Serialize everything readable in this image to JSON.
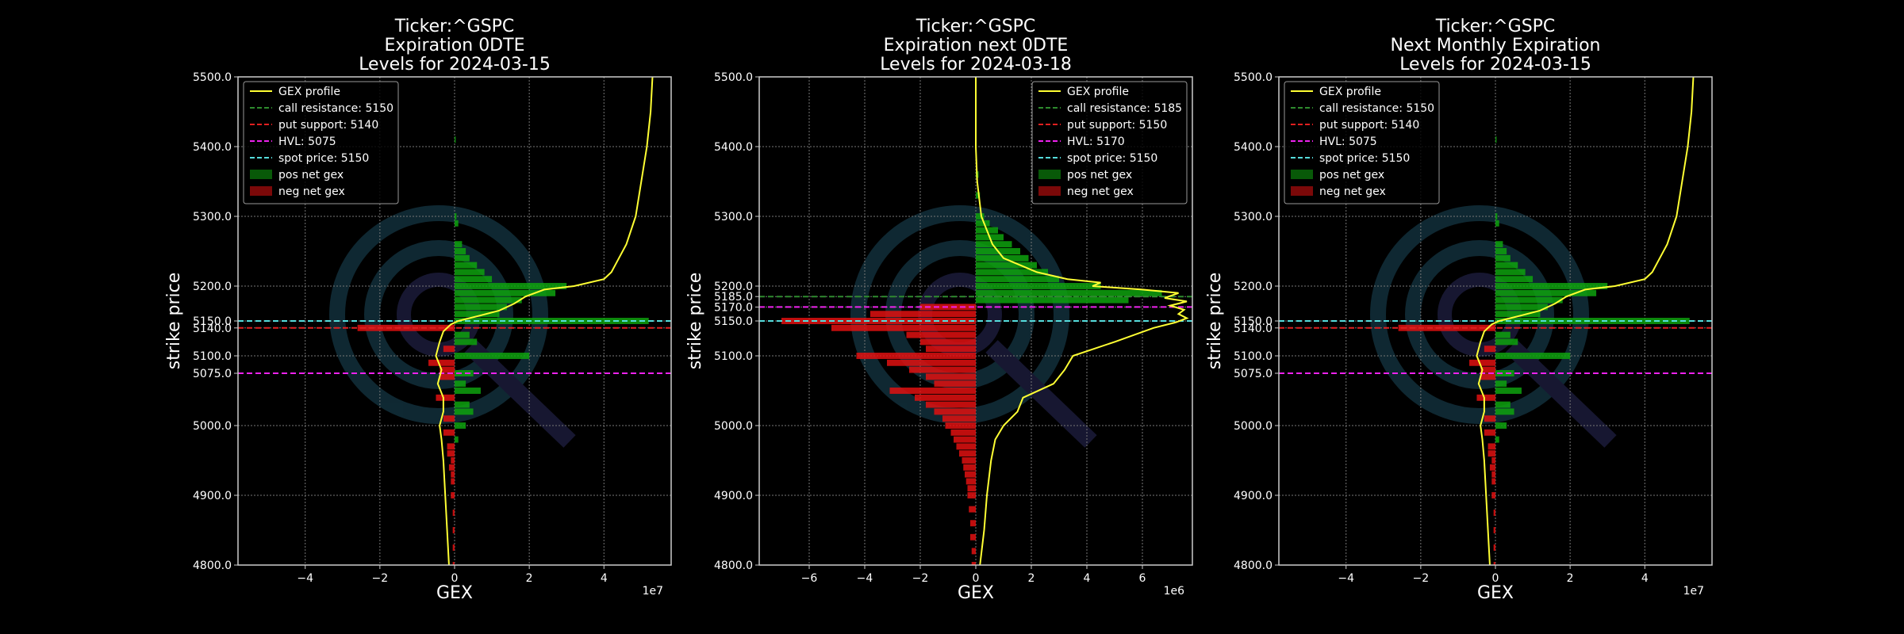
{
  "colors": {
    "background": "#000000",
    "gex_profile": "#ffff33",
    "call_resistance": "#2e8b2e",
    "put_support": "#e02020",
    "hvl": "#ee22ee",
    "spot_price": "#55dddd",
    "pos_net_gex": "#0ea20e",
    "neg_net_gex": "#e01010",
    "grid": "#777777",
    "text": "#ffffff",
    "watermark": "#1c4a5c"
  },
  "chart_data": [
    {
      "type": "bar",
      "title": [
        "Ticker:^GSPC",
        "Expiration 0DTE",
        "Levels for 2024-03-15"
      ],
      "xlabel": "GEX",
      "ylabel": "strike price",
      "x_exponent_label": "1e7",
      "x_scale": 10000000,
      "xlim": [
        -5.8,
        5.8
      ],
      "ylim": [
        4800,
        5500
      ],
      "x_ticks": [
        -4,
        -2,
        0,
        2,
        4
      ],
      "x_tick_labels": [
        "−4",
        "−2",
        "0",
        "2",
        "4"
      ],
      "y_ticks": [
        4800,
        4900,
        5000,
        5100,
        5140,
        5150,
        5200,
        5300,
        5400,
        5500
      ],
      "y_tick_labels": [
        "4800.0",
        "4900.0",
        "5000.0",
        "5100.0",
        "5140.0",
        "5150.0",
        "5200.0",
        "5300.0",
        "5400.0",
        "5500.0"
      ],
      "extra_y_ticks": [
        5075
      ],
      "extra_y_tick_labels": [
        "5075.0"
      ],
      "grid": true,
      "legend_position": "top-left",
      "legend": [
        "GEX profile",
        "call resistance: 5150",
        "put support: 5140",
        "HVL: 5075",
        "spot price: 5150",
        "pos net gex",
        "neg net gex"
      ],
      "levels": {
        "call_resistance": 5150,
        "put_support": 5140,
        "hvl": 5075,
        "spot_price": 5150
      },
      "bars": [
        {
          "strike": 5410,
          "gex": 0.03
        },
        {
          "strike": 5300,
          "gex": 0.05
        },
        {
          "strike": 5290,
          "gex": 0.1
        },
        {
          "strike": 5260,
          "gex": 0.2
        },
        {
          "strike": 5250,
          "gex": 0.3
        },
        {
          "strike": 5240,
          "gex": 0.4
        },
        {
          "strike": 5230,
          "gex": 0.6
        },
        {
          "strike": 5220,
          "gex": 0.8
        },
        {
          "strike": 5210,
          "gex": 1.0
        },
        {
          "strike": 5200,
          "gex": 3.0
        },
        {
          "strike": 5190,
          "gex": 2.7
        },
        {
          "strike": 5180,
          "gex": 1.8
        },
        {
          "strike": 5170,
          "gex": 1.4
        },
        {
          "strike": 5160,
          "gex": 1.2
        },
        {
          "strike": 5150,
          "gex": 5.2
        },
        {
          "strike": 5140,
          "gex": -2.6
        },
        {
          "strike": 5130,
          "gex": 0.4
        },
        {
          "strike": 5120,
          "gex": 0.6
        },
        {
          "strike": 5110,
          "gex": -0.3
        },
        {
          "strike": 5100,
          "gex": 2.0
        },
        {
          "strike": 5090,
          "gex": -0.7
        },
        {
          "strike": 5080,
          "gex": -0.4
        },
        {
          "strike": 5075,
          "gex": 0.5
        },
        {
          "strike": 5070,
          "gex": -0.4
        },
        {
          "strike": 5060,
          "gex": 0.3
        },
        {
          "strike": 5050,
          "gex": 0.7
        },
        {
          "strike": 5040,
          "gex": -0.5
        },
        {
          "strike": 5030,
          "gex": 0.4
        },
        {
          "strike": 5020,
          "gex": 0.5
        },
        {
          "strike": 5010,
          "gex": -0.3
        },
        {
          "strike": 5000,
          "gex": 0.3
        },
        {
          "strike": 4990,
          "gex": -0.3
        },
        {
          "strike": 4980,
          "gex": 0.1
        },
        {
          "strike": 4970,
          "gex": -0.2
        },
        {
          "strike": 4960,
          "gex": -0.2
        },
        {
          "strike": 4950,
          "gex": -0.1
        },
        {
          "strike": 4940,
          "gex": -0.15
        },
        {
          "strike": 4930,
          "gex": -0.1
        },
        {
          "strike": 4920,
          "gex": -0.1
        },
        {
          "strike": 4900,
          "gex": -0.1
        },
        {
          "strike": 4875,
          "gex": -0.05
        },
        {
          "strike": 4850,
          "gex": -0.05
        },
        {
          "strike": 4825,
          "gex": -0.05
        },
        {
          "strike": 4800,
          "gex": -0.05
        }
      ],
      "profile": [
        [
          5500,
          5.3
        ],
        [
          5450,
          5.25
        ],
        [
          5400,
          5.15
        ],
        [
          5350,
          5.0
        ],
        [
          5300,
          4.85
        ],
        [
          5260,
          4.6
        ],
        [
          5240,
          4.4
        ],
        [
          5220,
          4.2
        ],
        [
          5210,
          4.0
        ],
        [
          5200,
          3.2
        ],
        [
          5195,
          2.4
        ],
        [
          5185,
          1.9
        ],
        [
          5175,
          1.6
        ],
        [
          5165,
          1.2
        ],
        [
          5158,
          0.7
        ],
        [
          5150,
          0.1
        ],
        [
          5145,
          -0.1
        ],
        [
          5135,
          -0.3
        ],
        [
          5120,
          -0.4
        ],
        [
          5100,
          -0.5
        ],
        [
          5080,
          -0.35
        ],
        [
          5060,
          -0.45
        ],
        [
          5040,
          -0.3
        ],
        [
          5020,
          -0.3
        ],
        [
          5000,
          -0.4
        ],
        [
          4980,
          -0.35
        ],
        [
          4950,
          -0.3
        ],
        [
          4900,
          -0.25
        ],
        [
          4850,
          -0.2
        ],
        [
          4800,
          -0.15
        ]
      ]
    },
    {
      "type": "bar",
      "title": [
        "Ticker:^GSPC",
        "Expiration next 0DTE",
        "Levels for 2024-03-18"
      ],
      "xlabel": "GEX",
      "ylabel": "strike price",
      "x_exponent_label": "1e6",
      "x_scale": 1000000,
      "xlim": [
        -7.8,
        7.8
      ],
      "ylim": [
        4800,
        5500
      ],
      "x_ticks": [
        -6,
        -4,
        -2,
        0,
        2,
        4,
        6
      ],
      "x_tick_labels": [
        "−6",
        "−4",
        "−2",
        "0",
        "2",
        "4",
        "6"
      ],
      "y_ticks": [
        4800,
        4900,
        5000,
        5100,
        5150,
        5170,
        5185,
        5200,
        5300,
        5400,
        5500
      ],
      "y_tick_labels": [
        "4800.0",
        "4900.0",
        "5000.0",
        "5100.0",
        "5150.0",
        "5170.0",
        "5185.0",
        "5200.0",
        "5300.0",
        "5400.0",
        "5500.0"
      ],
      "extra_y_ticks": [],
      "extra_y_tick_labels": [],
      "grid": true,
      "legend_position": "top-right",
      "legend": [
        "GEX profile",
        "call resistance: 5185",
        "put support: 5150",
        "HVL: 5170",
        "spot price: 5150",
        "pos net gex",
        "neg net gex"
      ],
      "levels": {
        "call_resistance": 5185,
        "put_support": 5150,
        "hvl": 5170,
        "spot_price": 5150
      },
      "bars": [
        {
          "strike": 5360,
          "gex": 0.1
        },
        {
          "strike": 5330,
          "gex": 0.15
        },
        {
          "strike": 5300,
          "gex": 0.3
        },
        {
          "strike": 5290,
          "gex": 0.5
        },
        {
          "strike": 5280,
          "gex": 0.8
        },
        {
          "strike": 5270,
          "gex": 1.0
        },
        {
          "strike": 5260,
          "gex": 1.3
        },
        {
          "strike": 5250,
          "gex": 1.6
        },
        {
          "strike": 5240,
          "gex": 1.9
        },
        {
          "strike": 5230,
          "gex": 2.2
        },
        {
          "strike": 5220,
          "gex": 2.6
        },
        {
          "strike": 5210,
          "gex": 3.0
        },
        {
          "strike": 5200,
          "gex": 4.5
        },
        {
          "strike": 5190,
          "gex": 6.7
        },
        {
          "strike": 5180,
          "gex": 5.5
        },
        {
          "strike": 5170,
          "gex": -2.0
        },
        {
          "strike": 5160,
          "gex": -3.8
        },
        {
          "strike": 5150,
          "gex": -7.0
        },
        {
          "strike": 5140,
          "gex": -5.2
        },
        {
          "strike": 5130,
          "gex": -2.5
        },
        {
          "strike": 5120,
          "gex": -2.0
        },
        {
          "strike": 5110,
          "gex": -1.8
        },
        {
          "strike": 5100,
          "gex": -4.3
        },
        {
          "strike": 5090,
          "gex": -3.2
        },
        {
          "strike": 5080,
          "gex": -2.4
        },
        {
          "strike": 5070,
          "gex": -1.8
        },
        {
          "strike": 5060,
          "gex": -1.5
        },
        {
          "strike": 5050,
          "gex": -3.1
        },
        {
          "strike": 5040,
          "gex": -2.2
        },
        {
          "strike": 5030,
          "gex": -1.8
        },
        {
          "strike": 5020,
          "gex": -1.5
        },
        {
          "strike": 5010,
          "gex": -1.2
        },
        {
          "strike": 5000,
          "gex": -1.1
        },
        {
          "strike": 4990,
          "gex": -0.9
        },
        {
          "strike": 4980,
          "gex": -0.8
        },
        {
          "strike": 4970,
          "gex": -0.7
        },
        {
          "strike": 4960,
          "gex": -0.6
        },
        {
          "strike": 4950,
          "gex": -0.5
        },
        {
          "strike": 4940,
          "gex": -0.45
        },
        {
          "strike": 4930,
          "gex": -0.4
        },
        {
          "strike": 4920,
          "gex": -0.35
        },
        {
          "strike": 4910,
          "gex": -0.3
        },
        {
          "strike": 4900,
          "gex": -0.3
        },
        {
          "strike": 4880,
          "gex": -0.25
        },
        {
          "strike": 4860,
          "gex": -0.2
        },
        {
          "strike": 4840,
          "gex": -0.2
        },
        {
          "strike": 4820,
          "gex": -0.15
        },
        {
          "strike": 4800,
          "gex": -0.15
        }
      ],
      "profile": [
        [
          5500,
          0.0
        ],
        [
          5400,
          0.0
        ],
        [
          5350,
          0.05
        ],
        [
          5300,
          0.2
        ],
        [
          5260,
          0.6
        ],
        [
          5240,
          1.0
        ],
        [
          5220,
          2.2
        ],
        [
          5210,
          3.3
        ],
        [
          5205,
          4.5
        ],
        [
          5200,
          4.2
        ],
        [
          5195,
          6.0
        ],
        [
          5190,
          7.3
        ],
        [
          5183,
          6.8
        ],
        [
          5178,
          7.6
        ],
        [
          5172,
          7.0
        ],
        [
          5166,
          7.5
        ],
        [
          5160,
          7.3
        ],
        [
          5154,
          7.6
        ],
        [
          5148,
          7.2
        ],
        [
          5140,
          6.4
        ],
        [
          5120,
          5.0
        ],
        [
          5100,
          3.5
        ],
        [
          5080,
          3.2
        ],
        [
          5060,
          2.8
        ],
        [
          5040,
          1.7
        ],
        [
          5020,
          1.5
        ],
        [
          5000,
          1.0
        ],
        [
          4980,
          0.7
        ],
        [
          4950,
          0.55
        ],
        [
          4900,
          0.4
        ],
        [
          4850,
          0.3
        ],
        [
          4800,
          0.15
        ]
      ]
    },
    {
      "type": "bar",
      "title": [
        "Ticker:^GSPC",
        "Next Monthly Expiration",
        "Levels for 2024-03-15"
      ],
      "xlabel": "GEX",
      "ylabel": "strike price",
      "x_exponent_label": "1e7",
      "x_scale": 10000000,
      "xlim": [
        -5.8,
        5.8
      ],
      "ylim": [
        4800,
        5500
      ],
      "x_ticks": [
        -4,
        -2,
        0,
        2,
        4
      ],
      "x_tick_labels": [
        "−4",
        "−2",
        "0",
        "2",
        "4"
      ],
      "y_ticks": [
        4800,
        4900,
        5000,
        5100,
        5140,
        5150,
        5200,
        5300,
        5400,
        5500
      ],
      "y_tick_labels": [
        "4800.0",
        "4900.0",
        "5000.0",
        "5100.0",
        "5140.0",
        "5150.0",
        "5200.0",
        "5300.0",
        "5400.0",
        "5500.0"
      ],
      "extra_y_ticks": [
        5075
      ],
      "extra_y_tick_labels": [
        "5075.0"
      ],
      "grid": true,
      "legend_position": "top-left",
      "legend": [
        "GEX profile",
        "call resistance: 5150",
        "put support: 5140",
        "HVL: 5075",
        "spot price: 5150",
        "pos net gex",
        "neg net gex"
      ],
      "levels": {
        "call_resistance": 5150,
        "put_support": 5140,
        "hvl": 5075,
        "spot_price": 5150
      },
      "bars": [
        {
          "strike": 5410,
          "gex": 0.03
        },
        {
          "strike": 5300,
          "gex": 0.05
        },
        {
          "strike": 5290,
          "gex": 0.1
        },
        {
          "strike": 5260,
          "gex": 0.2
        },
        {
          "strike": 5250,
          "gex": 0.3
        },
        {
          "strike": 5240,
          "gex": 0.4
        },
        {
          "strike": 5230,
          "gex": 0.6
        },
        {
          "strike": 5220,
          "gex": 0.8
        },
        {
          "strike": 5210,
          "gex": 1.0
        },
        {
          "strike": 5200,
          "gex": 3.0
        },
        {
          "strike": 5190,
          "gex": 2.7
        },
        {
          "strike": 5180,
          "gex": 1.8
        },
        {
          "strike": 5170,
          "gex": 1.4
        },
        {
          "strike": 5160,
          "gex": 1.2
        },
        {
          "strike": 5150,
          "gex": 5.2
        },
        {
          "strike": 5140,
          "gex": -2.6
        },
        {
          "strike": 5130,
          "gex": 0.4
        },
        {
          "strike": 5120,
          "gex": 0.6
        },
        {
          "strike": 5110,
          "gex": -0.3
        },
        {
          "strike": 5100,
          "gex": 2.0
        },
        {
          "strike": 5090,
          "gex": -0.7
        },
        {
          "strike": 5080,
          "gex": -0.4
        },
        {
          "strike": 5075,
          "gex": 0.5
        },
        {
          "strike": 5070,
          "gex": -0.4
        },
        {
          "strike": 5060,
          "gex": 0.3
        },
        {
          "strike": 5050,
          "gex": 0.7
        },
        {
          "strike": 5040,
          "gex": -0.5
        },
        {
          "strike": 5030,
          "gex": 0.4
        },
        {
          "strike": 5020,
          "gex": 0.5
        },
        {
          "strike": 5010,
          "gex": -0.3
        },
        {
          "strike": 5000,
          "gex": 0.3
        },
        {
          "strike": 4990,
          "gex": -0.3
        },
        {
          "strike": 4980,
          "gex": 0.1
        },
        {
          "strike": 4970,
          "gex": -0.2
        },
        {
          "strike": 4960,
          "gex": -0.2
        },
        {
          "strike": 4950,
          "gex": -0.1
        },
        {
          "strike": 4940,
          "gex": -0.15
        },
        {
          "strike": 4930,
          "gex": -0.1
        },
        {
          "strike": 4920,
          "gex": -0.1
        },
        {
          "strike": 4900,
          "gex": -0.1
        },
        {
          "strike": 4875,
          "gex": -0.05
        },
        {
          "strike": 4850,
          "gex": -0.05
        },
        {
          "strike": 4825,
          "gex": -0.05
        },
        {
          "strike": 4800,
          "gex": -0.05
        }
      ],
      "profile": [
        [
          5500,
          5.3
        ],
        [
          5450,
          5.25
        ],
        [
          5400,
          5.15
        ],
        [
          5350,
          5.0
        ],
        [
          5300,
          4.85
        ],
        [
          5260,
          4.6
        ],
        [
          5240,
          4.4
        ],
        [
          5220,
          4.2
        ],
        [
          5210,
          4.0
        ],
        [
          5200,
          3.2
        ],
        [
          5195,
          2.4
        ],
        [
          5185,
          1.9
        ],
        [
          5175,
          1.6
        ],
        [
          5165,
          1.2
        ],
        [
          5158,
          0.7
        ],
        [
          5150,
          0.1
        ],
        [
          5145,
          -0.1
        ],
        [
          5135,
          -0.3
        ],
        [
          5120,
          -0.4
        ],
        [
          5100,
          -0.5
        ],
        [
          5080,
          -0.35
        ],
        [
          5060,
          -0.45
        ],
        [
          5040,
          -0.3
        ],
        [
          5020,
          -0.3
        ],
        [
          5000,
          -0.4
        ],
        [
          4980,
          -0.35
        ],
        [
          4950,
          -0.3
        ],
        [
          4900,
          -0.25
        ],
        [
          4850,
          -0.2
        ],
        [
          4800,
          -0.15
        ]
      ]
    }
  ]
}
